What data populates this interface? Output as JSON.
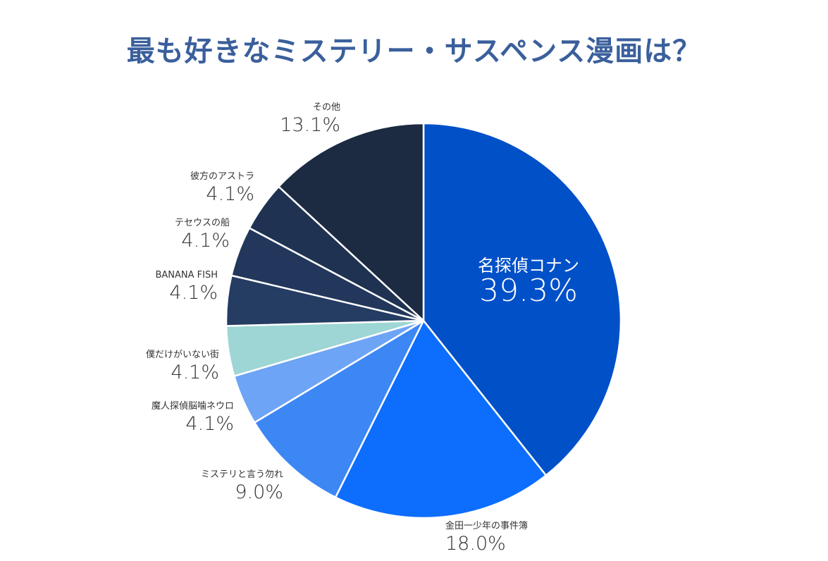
{
  "chart_data": {
    "type": "pie",
    "title": "最も好きなミステリー・サスペンス漫画は？",
    "start_angle": "top, clockwise",
    "slices": [
      {
        "label": "名探偵コナン",
        "value": 39.3,
        "pct_label": "39.3%",
        "color": "#0050c8"
      },
      {
        "label": "金田一少年の事件簿",
        "value": 18.0,
        "pct_label": "18.0%",
        "color": "#0d6efd"
      },
      {
        "label": "ミステリと言う勿れ",
        "value": 9.0,
        "pct_label": "9.0%",
        "color": "#3d87f5"
      },
      {
        "label": "魔人探偵脳噛ネウロ",
        "value": 4.1,
        "pct_label": "4.1%",
        "color": "#6ea4f5"
      },
      {
        "label": "僕だけがいない街",
        "value": 4.1,
        "pct_label": "4.1%",
        "color": "#9dd6d4"
      },
      {
        "label": "BANANA FISH",
        "value": 4.1,
        "pct_label": "4.1%",
        "color": "#253c63"
      },
      {
        "label": "テセウスの船",
        "value": 4.1,
        "pct_label": "4.1%",
        "color": "#22375b"
      },
      {
        "label": "彼方のアストラ",
        "value": 4.1,
        "pct_label": "4.1%",
        "color": "#1f3252"
      },
      {
        "label": "その他",
        "value": 13.1,
        "pct_label": "13.1%",
        "color": "#1c2a42"
      }
    ]
  }
}
